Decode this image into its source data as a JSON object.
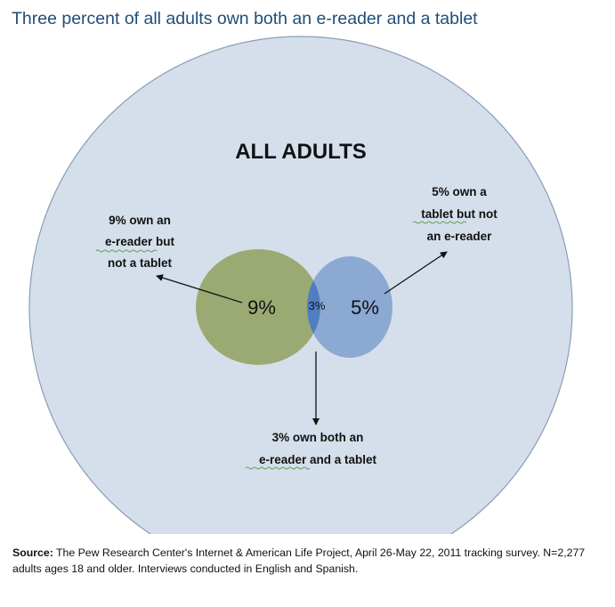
{
  "title": "Three percent of all adults own both an e-reader and a tablet",
  "venn": {
    "outer_label": "ALL ADULTS",
    "ereader_only": {
      "value": "9%",
      "annotation": [
        "9% own an",
        "e-reader but",
        "not a tablet"
      ]
    },
    "both": {
      "value": "3%",
      "annotation": [
        "3% own both an",
        "e-reader and a tablet"
      ]
    },
    "tablet_only": {
      "value": "5%",
      "annotation": [
        "5% own a",
        "tablet but not",
        "an e-reader"
      ]
    }
  },
  "colors": {
    "outer_fill": "#d5dfeb",
    "outer_stroke": "#8a9db3",
    "ereader_fill": "#9aaa72",
    "tablet_fill": "#8ca9d4",
    "overlap_fill": "#4f7fc0",
    "title": "#1f4e79"
  },
  "source": {
    "label": "Source:",
    "text": " The Pew Research Center's Internet & American Life Project, April 26-May 22, 2011 tracking survey. N=2,277 adults ages 18 and older. Interviews conducted in English and Spanish."
  }
}
